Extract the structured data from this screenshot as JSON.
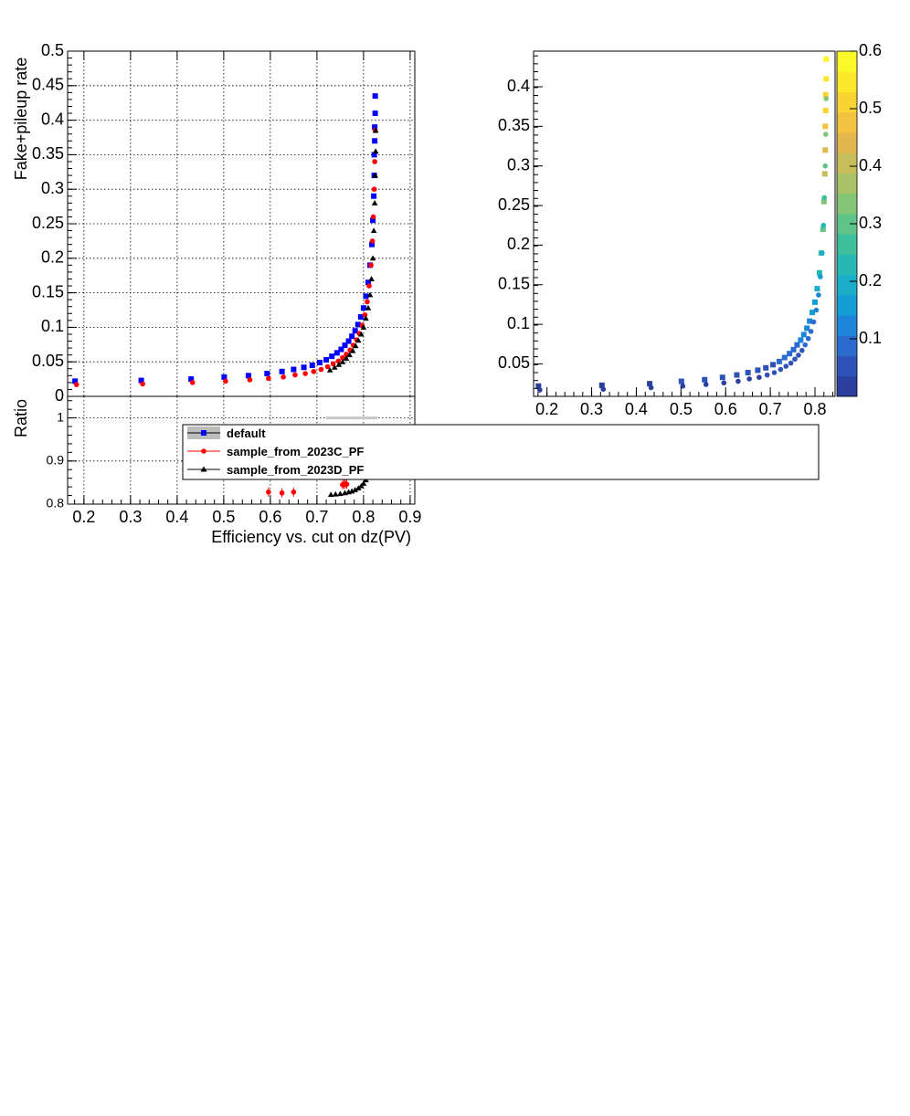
{
  "chart_data": [
    {
      "id": "main",
      "type": "scatter",
      "ylabel": "Fake+pileup rate",
      "xlim": [
        0.165,
        0.91
      ],
      "ylim": [
        0,
        0.5
      ],
      "grid": true,
      "yticks": [
        "0",
        "0.05",
        "0.1",
        "0.15",
        "0.2",
        "0.25",
        "0.3",
        "0.35",
        "0.4",
        "0.45",
        "0.5"
      ],
      "ytick_values": [
        0,
        0.05,
        0.1,
        0.15,
        0.2,
        0.25,
        0.3,
        0.35,
        0.4,
        0.45,
        0.5
      ],
      "series": [
        {
          "name": "default",
          "color": "#0000ff",
          "marker": "square",
          "x": [
            0.181,
            0.323,
            0.43,
            0.501,
            0.553,
            0.593,
            0.625,
            0.65,
            0.672,
            0.69,
            0.706,
            0.72,
            0.732,
            0.743,
            0.752,
            0.76,
            0.768,
            0.775,
            0.782,
            0.788,
            0.794,
            0.8,
            0.805,
            0.81,
            0.814,
            0.818,
            0.82,
            0.822,
            0.823,
            0.823,
            0.824,
            0.824,
            0.825,
            0.825
          ],
          "y": [
            0.022,
            0.023,
            0.025,
            0.028,
            0.03,
            0.033,
            0.036,
            0.039,
            0.042,
            0.045,
            0.049,
            0.053,
            0.058,
            0.063,
            0.068,
            0.074,
            0.08,
            0.087,
            0.095,
            0.104,
            0.115,
            0.128,
            0.145,
            0.165,
            0.19,
            0.22,
            0.255,
            0.29,
            0.32,
            0.35,
            0.37,
            0.39,
            0.41,
            0.435
          ]
        },
        {
          "name": "sample_from_2023C_PF",
          "color": "#ff0000",
          "marker": "circle",
          "x": [
            0.184,
            0.326,
            0.433,
            0.504,
            0.556,
            0.596,
            0.628,
            0.653,
            0.675,
            0.693,
            0.709,
            0.723,
            0.735,
            0.746,
            0.755,
            0.763,
            0.771,
            0.778,
            0.785,
            0.791,
            0.797,
            0.803,
            0.808,
            0.812,
            0.816,
            0.819,
            0.821,
            0.823,
            0.824,
            0.825
          ],
          "y": [
            0.017,
            0.018,
            0.02,
            0.022,
            0.024,
            0.026,
            0.028,
            0.031,
            0.033,
            0.036,
            0.039,
            0.043,
            0.047,
            0.051,
            0.056,
            0.061,
            0.067,
            0.074,
            0.082,
            0.091,
            0.103,
            0.118,
            0.137,
            0.16,
            0.19,
            0.225,
            0.26,
            0.3,
            0.34,
            0.385
          ]
        },
        {
          "name": "sample_from_2023D_PF",
          "color": "#000000",
          "marker": "triangle",
          "x": [
            0.728,
            0.738,
            0.747,
            0.755,
            0.763,
            0.77,
            0.777,
            0.783,
            0.789,
            0.795,
            0.8,
            0.805,
            0.81,
            0.814,
            0.817,
            0.82,
            0.822,
            0.824,
            0.825,
            0.826,
            0.826
          ],
          "y": [
            0.038,
            0.042,
            0.046,
            0.05,
            0.055,
            0.06,
            0.066,
            0.073,
            0.081,
            0.09,
            0.1,
            0.113,
            0.128,
            0.147,
            0.17,
            0.2,
            0.24,
            0.28,
            0.32,
            0.355,
            0.385
          ]
        }
      ]
    },
    {
      "id": "ratio",
      "type": "scatter",
      "ylabel": "Ratio",
      "xlabel": "Efficiency vs. cut on dz(PV)",
      "xlim": [
        0.165,
        0.91
      ],
      "ylim": [
        0.8,
        1.05
      ],
      "grid": true,
      "xticks": [
        "0.2",
        "0.3",
        "0.4",
        "0.5",
        "0.6",
        "0.7",
        "0.8",
        "0.9"
      ],
      "xtick_values": [
        0.2,
        0.3,
        0.4,
        0.5,
        0.6,
        0.7,
        0.8,
        0.9
      ],
      "yticks": [
        "0.8",
        "0.9",
        "1"
      ],
      "ytick_values": [
        0.8,
        0.9,
        1.0
      ],
      "series": [
        {
          "name": "sample_from_2023C_PF",
          "color": "#ff0000",
          "marker": "circle",
          "x": [
            0.596,
            0.625,
            0.65,
            0.755,
            0.758,
            0.761,
            0.764
          ],
          "y": [
            0.828,
            0.826,
            0.828,
            0.845,
            0.846,
            0.847,
            0.846
          ]
        },
        {
          "name": "sample_from_2023D_PF",
          "color": "#000000",
          "marker": "triangle",
          "x": [
            0.73,
            0.74,
            0.75,
            0.76,
            0.768,
            0.775,
            0.782,
            0.789,
            0.795,
            0.8,
            0.805,
            0.81,
            0.815
          ],
          "y": [
            0.822,
            0.823,
            0.824,
            0.826,
            0.828,
            0.83,
            0.833,
            0.837,
            0.842,
            0.848,
            0.856,
            0.866,
            0.878
          ]
        }
      ]
    },
    {
      "id": "colored",
      "type": "scatter",
      "xlim": [
        0.17,
        0.845
      ],
      "ylim": [
        0.009,
        0.445
      ],
      "xticks": [
        "0.2",
        "0.3",
        "0.4",
        "0.5",
        "0.6",
        "0.7",
        "0.8"
      ],
      "xtick_values": [
        0.2,
        0.3,
        0.4,
        0.5,
        0.6,
        0.7,
        0.8
      ],
      "yticks": [
        "0.05",
        "0.1",
        "0.15",
        "0.2",
        "0.25",
        "0.3",
        "0.35",
        "0.4"
      ],
      "ytick_values": [
        0.05,
        0.1,
        0.15,
        0.2,
        0.25,
        0.3,
        0.35,
        0.4
      ],
      "colorbar": {
        "range": [
          0,
          0.6
        ],
        "labels": [
          "0.1",
          "0.2",
          "0.3",
          "0.4",
          "0.5",
          "0.6"
        ],
        "label_values": [
          0.1,
          0.2,
          0.3,
          0.4,
          0.5,
          0.6
        ],
        "palette": [
          "#2a3f9e",
          "#2e53b8",
          "#2a6bd0",
          "#1e86d8",
          "#159dd6",
          "#1aaecb",
          "#27b8b4",
          "#3dbf9c",
          "#5ec487",
          "#82c576",
          "#a8c267",
          "#c7bd5a",
          "#e2b84e",
          "#f3c23e",
          "#f9d534",
          "#fbe82b",
          "#fbf82a"
        ]
      },
      "series": [
        {
          "name": "default",
          "marker": "square",
          "x": [
            0.181,
            0.323,
            0.43,
            0.501,
            0.553,
            0.593,
            0.625,
            0.65,
            0.672,
            0.69,
            0.706,
            0.72,
            0.732,
            0.743,
            0.752,
            0.76,
            0.768,
            0.775,
            0.782,
            0.788,
            0.794,
            0.8,
            0.805,
            0.81,
            0.814,
            0.818,
            0.82,
            0.822,
            0.823,
            0.823,
            0.824,
            0.824,
            0.825,
            0.825
          ],
          "y": [
            0.022,
            0.023,
            0.025,
            0.028,
            0.03,
            0.033,
            0.036,
            0.039,
            0.042,
            0.045,
            0.049,
            0.053,
            0.058,
            0.063,
            0.068,
            0.074,
            0.08,
            0.087,
            0.095,
            0.104,
            0.115,
            0.128,
            0.145,
            0.165,
            0.19,
            0.22,
            0.255,
            0.29,
            0.32,
            0.35,
            0.37,
            0.39,
            0.41,
            0.435
          ]
        },
        {
          "name": "default_circles",
          "marker": "circle",
          "x": [
            0.184,
            0.326,
            0.433,
            0.504,
            0.556,
            0.596,
            0.628,
            0.653,
            0.675,
            0.693,
            0.709,
            0.723,
            0.735,
            0.746,
            0.755,
            0.763,
            0.771,
            0.778,
            0.785,
            0.791,
            0.797,
            0.803,
            0.808,
            0.812,
            0.816,
            0.819,
            0.821,
            0.823,
            0.824,
            0.825
          ],
          "y": [
            0.017,
            0.018,
            0.02,
            0.022,
            0.024,
            0.026,
            0.028,
            0.031,
            0.033,
            0.036,
            0.039,
            0.043,
            0.047,
            0.051,
            0.056,
            0.061,
            0.067,
            0.074,
            0.082,
            0.091,
            0.103,
            0.118,
            0.137,
            0.16,
            0.19,
            0.225,
            0.26,
            0.3,
            0.34,
            0.385
          ]
        }
      ]
    }
  ],
  "legend": {
    "entries": [
      {
        "label": "default",
        "color": "#0000ff",
        "marker": "square"
      },
      {
        "label": "sample_from_2023C_PF",
        "color": "#ff0000",
        "marker": "circle"
      },
      {
        "label": "sample_from_2023D_PF",
        "color": "#000000",
        "marker": "triangle"
      }
    ]
  }
}
